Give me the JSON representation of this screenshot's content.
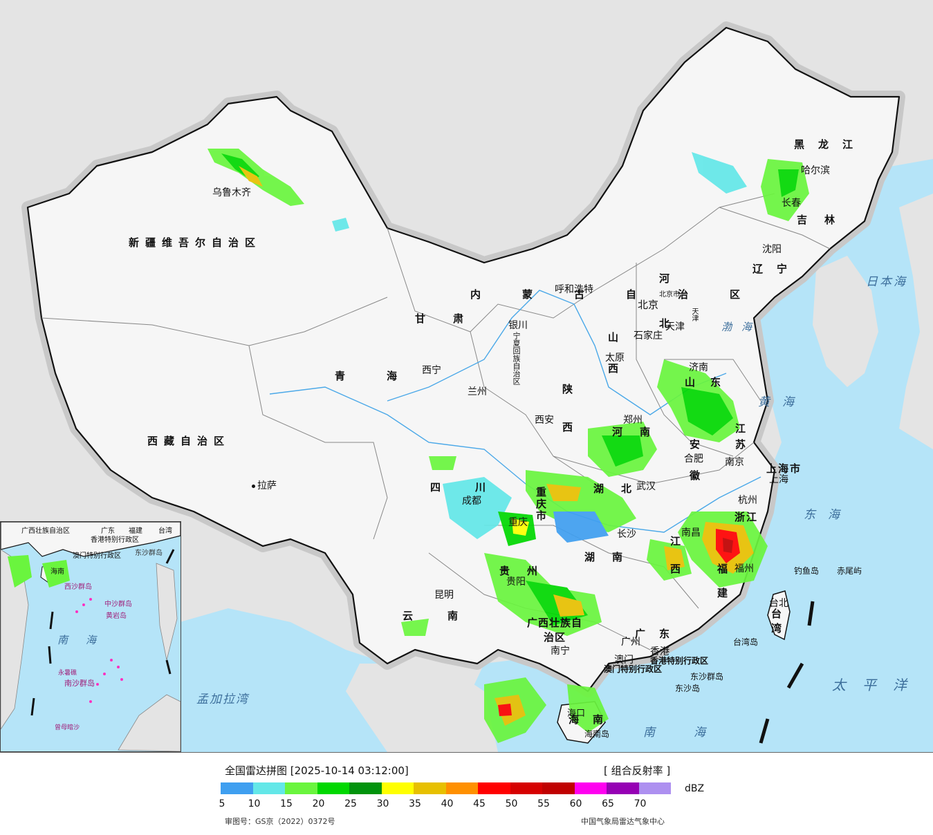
{
  "map": {
    "provinces": [
      {
        "id": "xinjiang",
        "label": "新疆维吾尔自治区"
      },
      {
        "id": "xizang",
        "label": "西藏自治区"
      },
      {
        "id": "qinghai",
        "label": "青海"
      },
      {
        "id": "gansu",
        "label": "甘肃"
      },
      {
        "id": "neimenggu",
        "label": "内蒙古自治区"
      },
      {
        "id": "heilongjiang",
        "label": "黑龙江"
      },
      {
        "id": "jilin",
        "label": "吉林"
      },
      {
        "id": "liaoning",
        "label": "辽宁"
      },
      {
        "id": "hebei",
        "label": "河北"
      },
      {
        "id": "shanxi",
        "label": "山西"
      },
      {
        "id": "shaanxi",
        "label": "陕西"
      },
      {
        "id": "ningxia",
        "label": "宁夏回族自治区"
      },
      {
        "id": "shandong",
        "label": "山东"
      },
      {
        "id": "henan",
        "label": "河南"
      },
      {
        "id": "jiangsu",
        "label": "江苏"
      },
      {
        "id": "anhui",
        "label": "安徽"
      },
      {
        "id": "shanghai",
        "label": "上海市"
      },
      {
        "id": "zhejiang",
        "label": "浙江"
      },
      {
        "id": "hubei",
        "label": "湖北"
      },
      {
        "id": "sichuan",
        "label": "四川"
      },
      {
        "id": "chongqing",
        "label": "重庆市"
      },
      {
        "id": "guizhou",
        "label": "贵州"
      },
      {
        "id": "yunnan",
        "label": "云南"
      },
      {
        "id": "hunan",
        "label": "湖南"
      },
      {
        "id": "jiangxi",
        "label": "江西"
      },
      {
        "id": "fujian",
        "label": "福建"
      },
      {
        "id": "guangxi",
        "label": "广西壮族自治区"
      },
      {
        "id": "guangdong",
        "label": "广东"
      },
      {
        "id": "hainan",
        "label": "海南"
      },
      {
        "id": "taiwan",
        "label": "台湾"
      },
      {
        "id": "hongkong",
        "label": "香港特别行政区"
      },
      {
        "id": "macau",
        "label": "澳门特别行政区"
      },
      {
        "id": "beijing",
        "label": "北京市"
      },
      {
        "id": "tianjin",
        "label": "天津"
      }
    ],
    "cities": [
      {
        "id": "urumqi",
        "label": "乌鲁木齐"
      },
      {
        "id": "lhasa",
        "label": "拉萨"
      },
      {
        "id": "xining",
        "label": "西宁"
      },
      {
        "id": "lanzhou",
        "label": "兰州"
      },
      {
        "id": "yinchuan",
        "label": "银川"
      },
      {
        "id": "hohhot",
        "label": "呼和浩特"
      },
      {
        "id": "harbin",
        "label": "哈尔滨"
      },
      {
        "id": "changchun",
        "label": "长春"
      },
      {
        "id": "shenyang",
        "label": "沈阳"
      },
      {
        "id": "beijing",
        "label": "北京"
      },
      {
        "id": "tianjin",
        "label": "天津"
      },
      {
        "id": "shijiazhuang",
        "label": "石家庄"
      },
      {
        "id": "taiyuan",
        "label": "太原"
      },
      {
        "id": "jinan",
        "label": "济南"
      },
      {
        "id": "zhengzhou",
        "label": "郑州"
      },
      {
        "id": "xian",
        "label": "西安"
      },
      {
        "id": "hefei",
        "label": "合肥"
      },
      {
        "id": "nanjing",
        "label": "南京"
      },
      {
        "id": "shanghai",
        "label": "上海"
      },
      {
        "id": "hangzhou",
        "label": "杭州"
      },
      {
        "id": "wuhan",
        "label": "武汉"
      },
      {
        "id": "chengdu",
        "label": "成都"
      },
      {
        "id": "chongqing",
        "label": "重庆"
      },
      {
        "id": "guiyang",
        "label": "贵阳"
      },
      {
        "id": "kunming",
        "label": "昆明"
      },
      {
        "id": "changsha",
        "label": "长沙"
      },
      {
        "id": "nanchang",
        "label": "南昌"
      },
      {
        "id": "fuzhou",
        "label": "福州"
      },
      {
        "id": "nanning",
        "label": "南宁"
      },
      {
        "id": "guangzhou",
        "label": "广州"
      },
      {
        "id": "hongkong",
        "label": "香港"
      },
      {
        "id": "macau",
        "label": "澳门"
      },
      {
        "id": "haikou",
        "label": "海口"
      },
      {
        "id": "taibei",
        "label": "台北"
      }
    ],
    "seas": [
      {
        "id": "sea-japan",
        "label": "日本海"
      },
      {
        "id": "sea-bohai",
        "label": "渤海"
      },
      {
        "id": "sea-yellow",
        "label": "黄海"
      },
      {
        "id": "sea-east",
        "label": "东海"
      },
      {
        "id": "sea-pacific",
        "label": "太平洋"
      },
      {
        "id": "sea-south",
        "label": "南海"
      },
      {
        "id": "sea-bengal",
        "label": "孟加拉湾"
      }
    ],
    "islands": [
      {
        "id": "diaoyu",
        "label": "钓鱼岛"
      },
      {
        "id": "chiwei",
        "label": "赤尾屿"
      },
      {
        "id": "taiwan-island",
        "label": "台湾岛"
      },
      {
        "id": "dongsha-group",
        "label": "东沙群岛"
      },
      {
        "id": "dongsha",
        "label": "东沙岛"
      },
      {
        "id": "hainan-island",
        "label": "海南岛"
      }
    ],
    "inset": {
      "labels": [
        {
          "id": "in-guangxi",
          "label": "广西壮族自治区"
        },
        {
          "id": "in-guangdong",
          "label": "广东"
        },
        {
          "id": "in-fujian",
          "label": "福建"
        },
        {
          "id": "in-taiwan",
          "label": "台湾"
        },
        {
          "id": "in-hk",
          "label": "香港特别行政区"
        },
        {
          "id": "in-macau",
          "label": "澳门特别行政区"
        },
        {
          "id": "in-dongsha",
          "label": "东沙群岛"
        },
        {
          "id": "in-hainan",
          "label": "海南"
        },
        {
          "id": "in-xisha",
          "label": "西沙群岛"
        },
        {
          "id": "in-zhongsha",
          "label": "中沙群岛"
        },
        {
          "id": "in-huangyan",
          "label": "黄岩岛"
        },
        {
          "id": "in-sea",
          "label": "南海"
        },
        {
          "id": "in-nansha",
          "label": "南沙群岛"
        },
        {
          "id": "in-yongshu",
          "label": "永暑礁"
        },
        {
          "id": "in-zengmu",
          "label": "曾母暗沙"
        }
      ]
    }
  },
  "legend": {
    "title": "全国雷达拼图 [2025-10-14 03:12:00]",
    "product": "[ 组合反射率 ]",
    "unit": "dBZ",
    "scale": [
      {
        "from": 5,
        "color": "#3f9ff0"
      },
      {
        "from": 10,
        "color": "#63e7e8"
      },
      {
        "from": 15,
        "color": "#6af53e"
      },
      {
        "from": 20,
        "color": "#00d800"
      },
      {
        "from": 25,
        "color": "#01930c"
      },
      {
        "from": 30,
        "color": "#ffff00"
      },
      {
        "from": 35,
        "color": "#e7c000"
      },
      {
        "from": 40,
        "color": "#ff9000"
      },
      {
        "from": 45,
        "color": "#ff0000"
      },
      {
        "from": 50,
        "color": "#d60000"
      },
      {
        "from": 55,
        "color": "#c00000"
      },
      {
        "from": 60,
        "color": "#ff00f0"
      },
      {
        "from": 65,
        "color": "#9600b4"
      },
      {
        "from": 70,
        "color": "#ad90f0"
      }
    ],
    "ticks": [
      "5",
      "10",
      "15",
      "20",
      "25",
      "30",
      "35",
      "40",
      "45",
      "50",
      "55",
      "60",
      "65",
      "70"
    ],
    "review_number": "审图号：GS京（2022）0372号",
    "source": "中国气象局雷达气象中心"
  }
}
